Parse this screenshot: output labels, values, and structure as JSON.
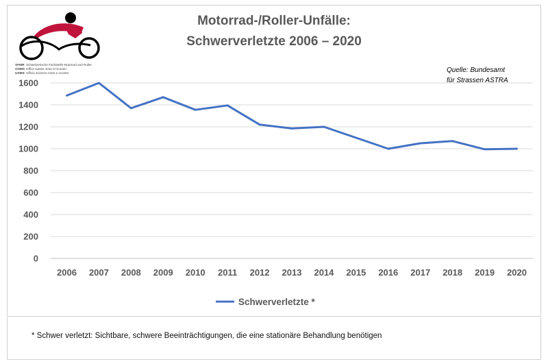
{
  "title_lines": [
    "Motorrad-/Roller-Unfälle:",
    "Schwerverletzte 2006 – 2020"
  ],
  "source_lines": [
    "Quelle: Bundesamt",
    "für Strassen ASTRA"
  ],
  "footnote": "* Schwer verletzt: Sichtbare, schwere Beeinträchtigungen, die eine stationäre Behandlung benötigen",
  "logo": {
    "abbreviations": [
      "SFMR",
      "OSMS",
      "USMS"
    ],
    "lines": [
      "Schweizerische Fachstelle Motorrad und Roller",
      "Office suisse moto et scooter",
      "Ufficio svizzero moto e scooter"
    ],
    "colors": {
      "rider_head": "#000000",
      "jacket": "#c0143c",
      "bike": "#000000"
    }
  },
  "chart_data": {
    "type": "line",
    "x": [
      "2006",
      "2007",
      "2008",
      "2009",
      "2010",
      "2011",
      "2012",
      "2013",
      "2014",
      "2015",
      "2016",
      "2017",
      "2018",
      "2019",
      "2020"
    ],
    "series": [
      {
        "name": "Schwerverletzte *",
        "values": [
          1485,
          1600,
          1370,
          1470,
          1355,
          1395,
          1220,
          1185,
          1200,
          1100,
          1000,
          1050,
          1070,
          995,
          1000
        ],
        "color": "#4472c4"
      }
    ],
    "y_ticks": [
      "0",
      "200",
      "400",
      "600",
      "800",
      "1000",
      "1200",
      "1400",
      "1600"
    ],
    "ylim": [
      0,
      1600
    ],
    "grid": true,
    "legend_position": "bottom"
  }
}
